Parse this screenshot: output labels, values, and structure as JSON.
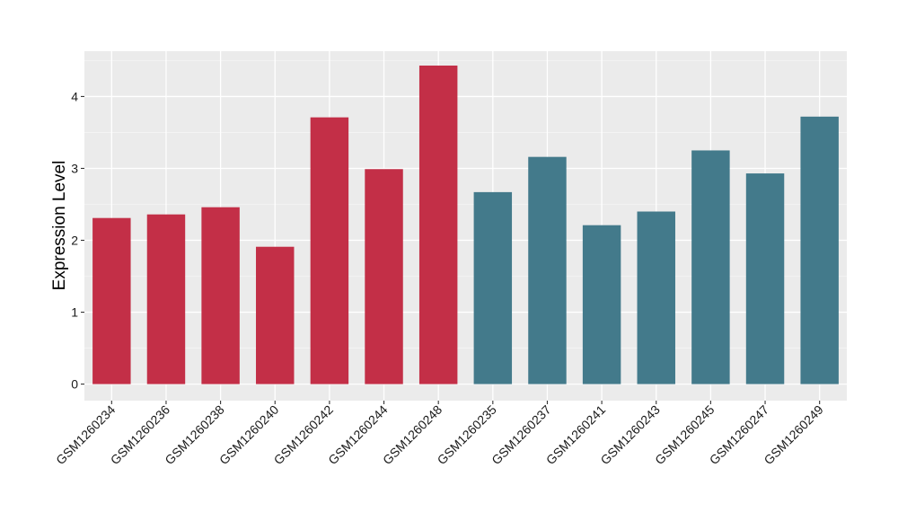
{
  "colors": {
    "panel_background": "#EBEBEB",
    "grid_major": "#FFFFFF",
    "grid_minor": "#F5F5F5",
    "group_1": "#C32F47",
    "group_2": "#437A8B",
    "axis_ticks": "#333333"
  },
  "chart_data": {
    "type": "bar",
    "title": "",
    "xlabel": "",
    "ylabel": "Expression Level",
    "ylim": [
      -0.23,
      4.63
    ],
    "yticks": [
      0,
      1,
      2,
      3,
      4
    ],
    "grid": true,
    "legend": "none",
    "categories": [
      "GSM1260234",
      "GSM1260236",
      "GSM1260238",
      "GSM1260240",
      "GSM1260242",
      "GSM1260244",
      "GSM1260248",
      "GSM1260235",
      "GSM1260237",
      "GSM1260241",
      "GSM1260243",
      "GSM1260245",
      "GSM1260247",
      "GSM1260249"
    ],
    "values": [
      2.31,
      2.36,
      2.46,
      1.91,
      3.71,
      2.99,
      4.43,
      2.67,
      3.16,
      2.21,
      2.4,
      3.25,
      2.93,
      3.72
    ],
    "bar_group": [
      1,
      1,
      1,
      1,
      1,
      1,
      1,
      2,
      2,
      2,
      2,
      2,
      2,
      2
    ]
  }
}
